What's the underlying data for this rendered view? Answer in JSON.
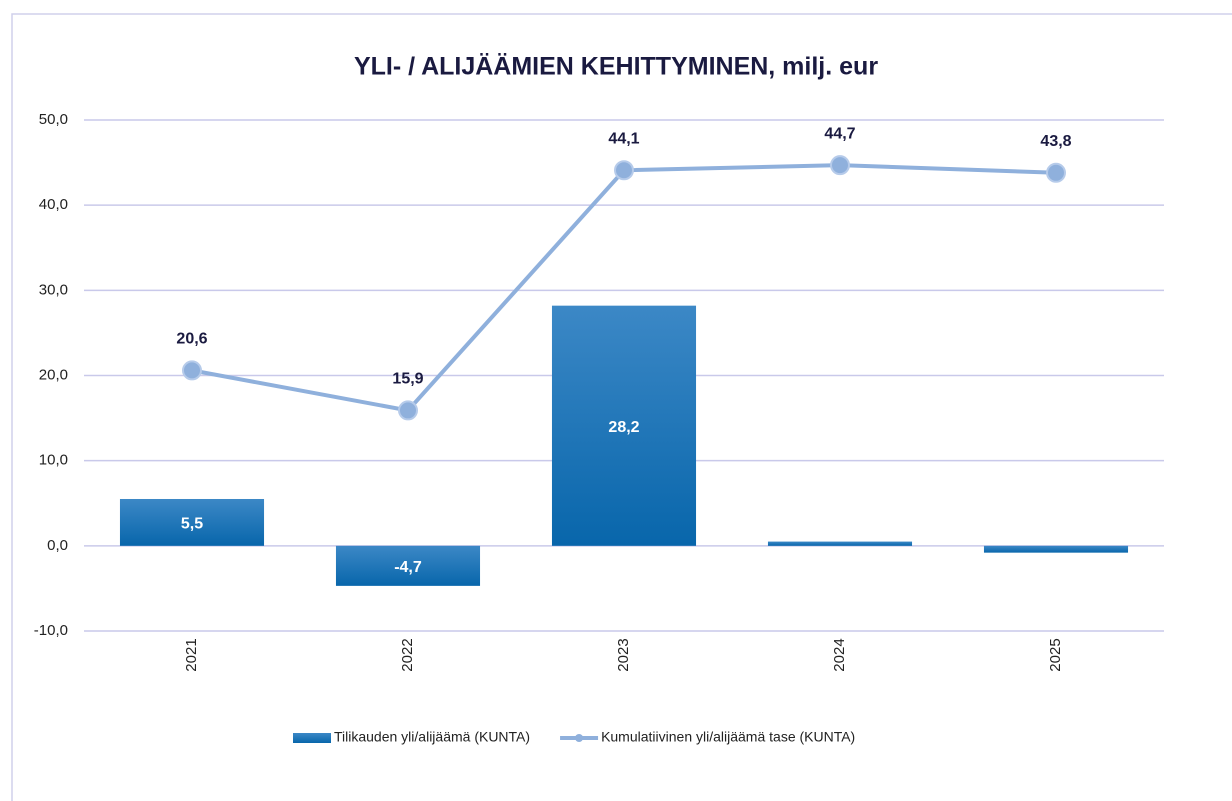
{
  "chart_data": {
    "type": "combo",
    "title": "YLI-  / ALIJÄÄMIEN KEHITTYMINEN, milj. eur",
    "categories": [
      "2021",
      "2022",
      "2023",
      "2024",
      "2025"
    ],
    "series": [
      {
        "name": "Tilikauden yli/alijäämä (KUNTA)",
        "type": "bar",
        "color": "#0f6aae",
        "values": [
          5.5,
          -4.7,
          28.2,
          0.5,
          -0.8
        ],
        "value_labels": [
          "5,5",
          "-4,7",
          "28,2",
          null,
          null
        ]
      },
      {
        "name": "Kumulatiivinen yli/alijäämä tase (KUNTA)",
        "type": "line",
        "color": "#8fb0dc",
        "values": [
          20.6,
          15.9,
          44.1,
          44.7,
          43.8
        ],
        "value_labels": [
          "20,6",
          "15,9",
          "44,1",
          "44,7",
          "43,8"
        ]
      }
    ],
    "ylim": [
      -10,
      50
    ],
    "yticks": [
      {
        "value": -10,
        "label": "-10,0"
      },
      {
        "value": 0,
        "label": "0,0"
      },
      {
        "value": 10,
        "label": "10,0"
      },
      {
        "value": 20,
        "label": "20,0"
      },
      {
        "value": 30,
        "label": "30,0"
      },
      {
        "value": 40,
        "label": "40,0"
      },
      {
        "value": 50,
        "label": "50,0"
      }
    ],
    "grid": true,
    "legend": "bottom"
  }
}
